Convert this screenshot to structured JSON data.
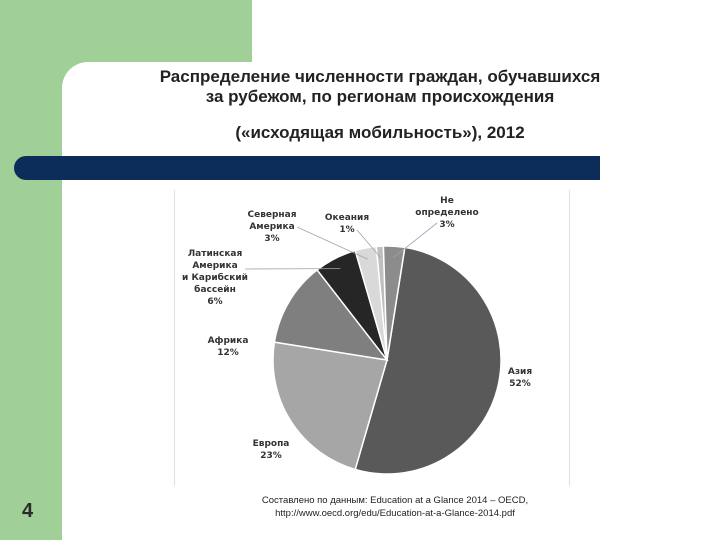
{
  "title": {
    "line1": "Распределение численности граждан, обучавшихся",
    "line2": "за рубежом, по регионам происхождения",
    "line3": "(«исходящая мобильность»), 2012"
  },
  "page_number": "4",
  "source": {
    "line1": "Составлено по данным: Education at a Glance 2014 – OECD,",
    "line2": "http://www.oecd.org/edu/Education-at-a-Glance-2014.pdf"
  },
  "chart_data": {
    "type": "pie",
    "title": "",
    "slices": [
      {
        "name": "Азия",
        "value": 52,
        "label": "52%",
        "color": "#595959"
      },
      {
        "name": "Европа",
        "value": 23,
        "label": "23%",
        "color": "#a6a6a6"
      },
      {
        "name": "Африка",
        "value": 12,
        "label": "12%",
        "color": "#7f7f7f"
      },
      {
        "name": "Латинская Америка и Карибский бассейн",
        "value": 6,
        "label": "6%",
        "color": "#262626"
      },
      {
        "name": "Северная Америка",
        "value": 3,
        "label": "3%",
        "color": "#d9d9d9"
      },
      {
        "name": "Океания",
        "value": 1,
        "label": "1%",
        "color": "#bfbfbf"
      },
      {
        "name": "Не определено",
        "value": 3,
        "label": "3%",
        "color": "#8c8c8c"
      }
    ],
    "label_lines": [
      [
        "Азия",
        "52%"
      ],
      [
        "Европа",
        "23%"
      ],
      [
        "Африка",
        "12%"
      ],
      [
        "Латинская",
        "Америка",
        "и Карибский",
        "бассейн",
        "6%"
      ],
      [
        "Северная",
        "Америка",
        "3%"
      ],
      [
        "Океания",
        "1%"
      ],
      [
        "Не",
        "определено",
        "3%"
      ]
    ]
  }
}
